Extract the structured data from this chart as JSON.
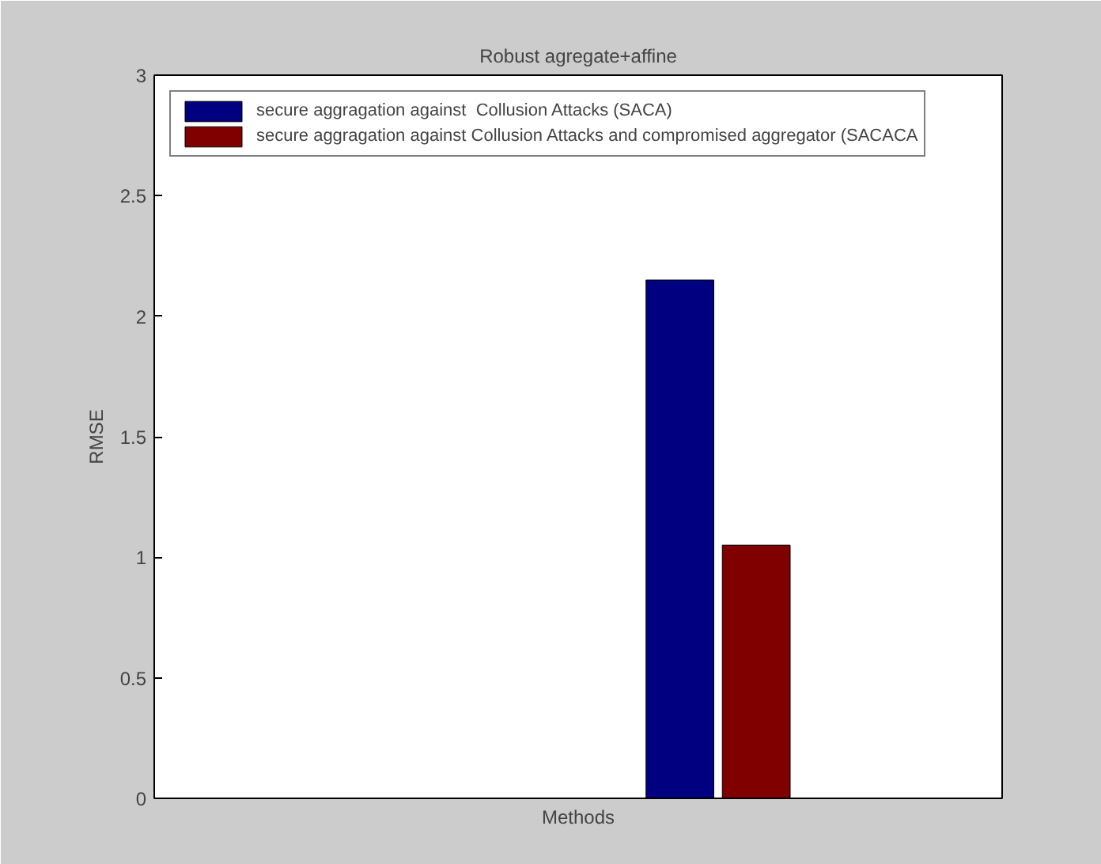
{
  "chart_data": {
    "type": "bar",
    "title": "Robust agregate+affine",
    "xlabel": "Methods",
    "ylabel": "RMSE",
    "categories": [
      null
    ],
    "series": [
      {
        "name": "secure aggragation against  Collusion Attacks (SACA)",
        "color": "#000080",
        "values": [
          2.15
        ]
      },
      {
        "name": "secure aggragation against Collusion Attacks and compromised aggregator (SACACA",
        "color": "#800000",
        "values": [
          1.05
        ]
      }
    ],
    "ylim": [
      0,
      3
    ],
    "yticks": [
      0,
      0.5,
      1,
      1.5,
      2,
      2.5,
      3
    ],
    "legend": "top left",
    "tick_labels": "y"
  }
}
